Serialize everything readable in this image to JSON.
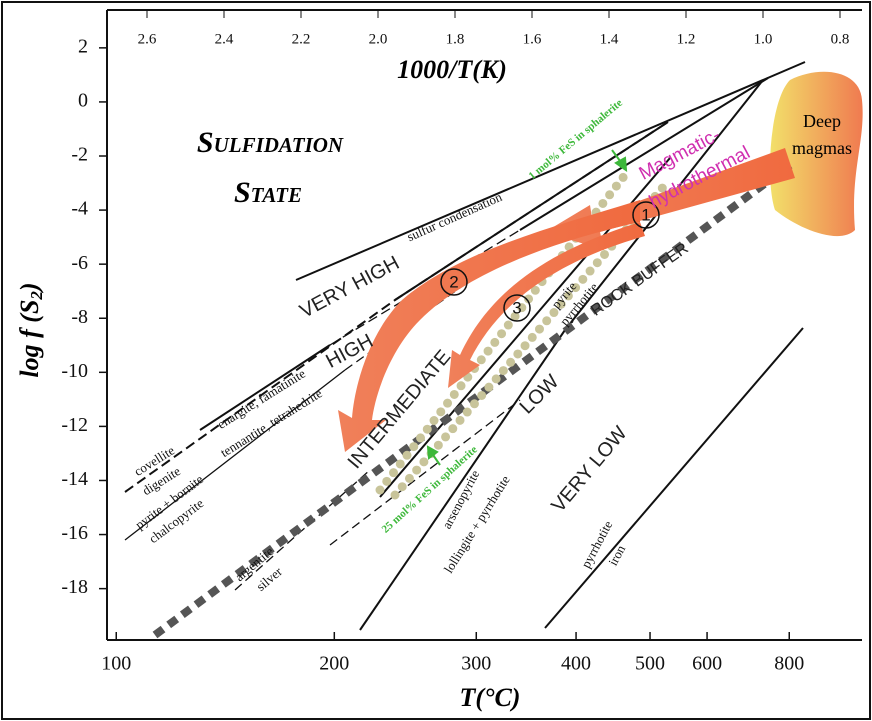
{
  "header": {
    "title": [
      "Sulfidation",
      "State"
    ]
  },
  "axes": {
    "top": {
      "title": "1000/T(K)",
      "ticks": [
        2.6,
        2.4,
        2.2,
        {
          "value": 2,
          "label": "2.0"
        },
        1.8,
        1.6,
        1.4,
        1.2,
        {
          "value": 1,
          "label": "1.0"
        },
        0.8
      ]
    },
    "left": {
      "title": [
        "log f (S",
        "2",
        ")"
      ],
      "lim": [
        -19.9,
        3.4
      ],
      "ticks": [
        2,
        0,
        -2,
        -4,
        -6,
        -8,
        -10,
        -12,
        -14,
        -16,
        -18
      ]
    },
    "bottom": {
      "title": "T(°C)",
      "ticks": [
        100,
        200,
        300,
        400,
        500,
        600,
        800
      ]
    }
  },
  "regions": {
    "very_high": "VERY HIGH",
    "high": "HIGH",
    "intermediate": "INTERMEDIATE",
    "low": "LOW",
    "very_low": "VERY LOW",
    "rock_buffer": "ROCK BUFFER"
  },
  "labels": {
    "sulfur": "sulfur condensation",
    "covellite": "covellite",
    "digenite": "digenite",
    "enargite": "enargite, famatinite",
    "tennantite": "tennantite, tetrahedrite",
    "pyrite_bornite": "pyrite + bornite",
    "chalcopyrite": "chalcopyrite",
    "argentite": "argentite",
    "silver": "silver",
    "arsenopyrite": "arsenopyrite",
    "lollingite": "lollingite + pyrrhotite",
    "pyrrhotite_low": "pyrrhotite",
    "iron": "iron",
    "pyrite": "pyrite",
    "pyrrhotite_mid": "pyrrhotite",
    "fes1": "1 mol% FeS in sphalerite",
    "fes25": "25 mol% FeS in sphalerite",
    "magmatic": [
      "Magmatic-",
      "hydrothermal"
    ],
    "deep": [
      "Deep",
      "magmas"
    ],
    "paths": [
      "1",
      "2",
      "3"
    ]
  }
}
